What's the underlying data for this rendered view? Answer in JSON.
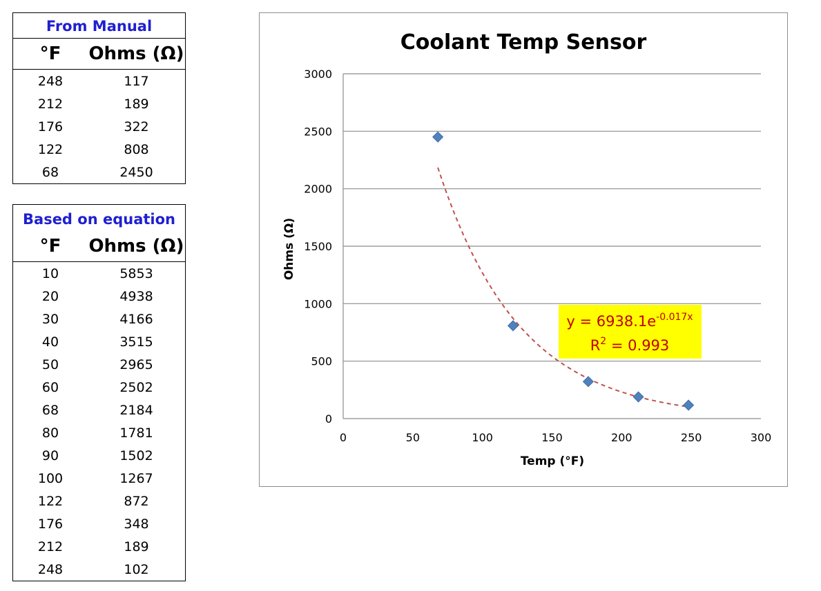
{
  "manual_table": {
    "title": "From Manual",
    "col1": "°F",
    "col2": "Ohms (Ω)",
    "rows": [
      {
        "f": "248",
        "ohms": "117"
      },
      {
        "f": "212",
        "ohms": "189"
      },
      {
        "f": "176",
        "ohms": "322"
      },
      {
        "f": "122",
        "ohms": "808"
      },
      {
        "f": "68",
        "ohms": "2450"
      }
    ]
  },
  "equation_table": {
    "title": "Based on equation",
    "col1": "°F",
    "col2": "Ohms (Ω)",
    "rows": [
      {
        "f": "10",
        "ohms": "5853"
      },
      {
        "f": "20",
        "ohms": "4938"
      },
      {
        "f": "30",
        "ohms": "4166"
      },
      {
        "f": "40",
        "ohms": "3515"
      },
      {
        "f": "50",
        "ohms": "2965"
      },
      {
        "f": "60",
        "ohms": "2502"
      },
      {
        "f": "68",
        "ohms": "2184"
      },
      {
        "f": "80",
        "ohms": "1781"
      },
      {
        "f": "90",
        "ohms": "1502"
      },
      {
        "f": "100",
        "ohms": "1267"
      },
      {
        "f": "122",
        "ohms": "872"
      },
      {
        "f": "176",
        "ohms": "348"
      },
      {
        "f": "212",
        "ohms": "189"
      },
      {
        "f": "248",
        "ohms": "102"
      }
    ]
  },
  "chart_data": {
    "type": "scatter",
    "title": "Coolant Temp Sensor",
    "xlabel": "Temp (°F)",
    "ylabel": "Ohms (Ω)",
    "xlim": [
      0,
      300
    ],
    "ylim": [
      0,
      3000
    ],
    "xticks": [
      0,
      50,
      100,
      150,
      200,
      250,
      300
    ],
    "yticks": [
      0,
      500,
      1000,
      1500,
      2000,
      2500,
      3000
    ],
    "grid": "horizontal",
    "legend": "none",
    "series": [
      {
        "points": [
          {
            "x": 68,
            "y": 2450
          },
          {
            "x": 122,
            "y": 808
          },
          {
            "x": 176,
            "y": 322
          },
          {
            "x": 212,
            "y": 189
          },
          {
            "x": 248,
            "y": 117
          }
        ],
        "color": "#4f81bd",
        "marker": "diamond"
      }
    ],
    "trendline": {
      "kind": "exponential",
      "a": 6938.1,
      "b": -0.017,
      "x_range": [
        68,
        248
      ],
      "color": "#c0504d",
      "style": "dashed"
    },
    "annotation": {
      "eq_prefix": "y = 6938.1e",
      "eq_exponent": "-0.017x",
      "r2_prefix": "R",
      "r2_sup": "2",
      "r2_suffix": " = 0.993",
      "background": "#ffff00",
      "text_color": "#c00000"
    }
  }
}
